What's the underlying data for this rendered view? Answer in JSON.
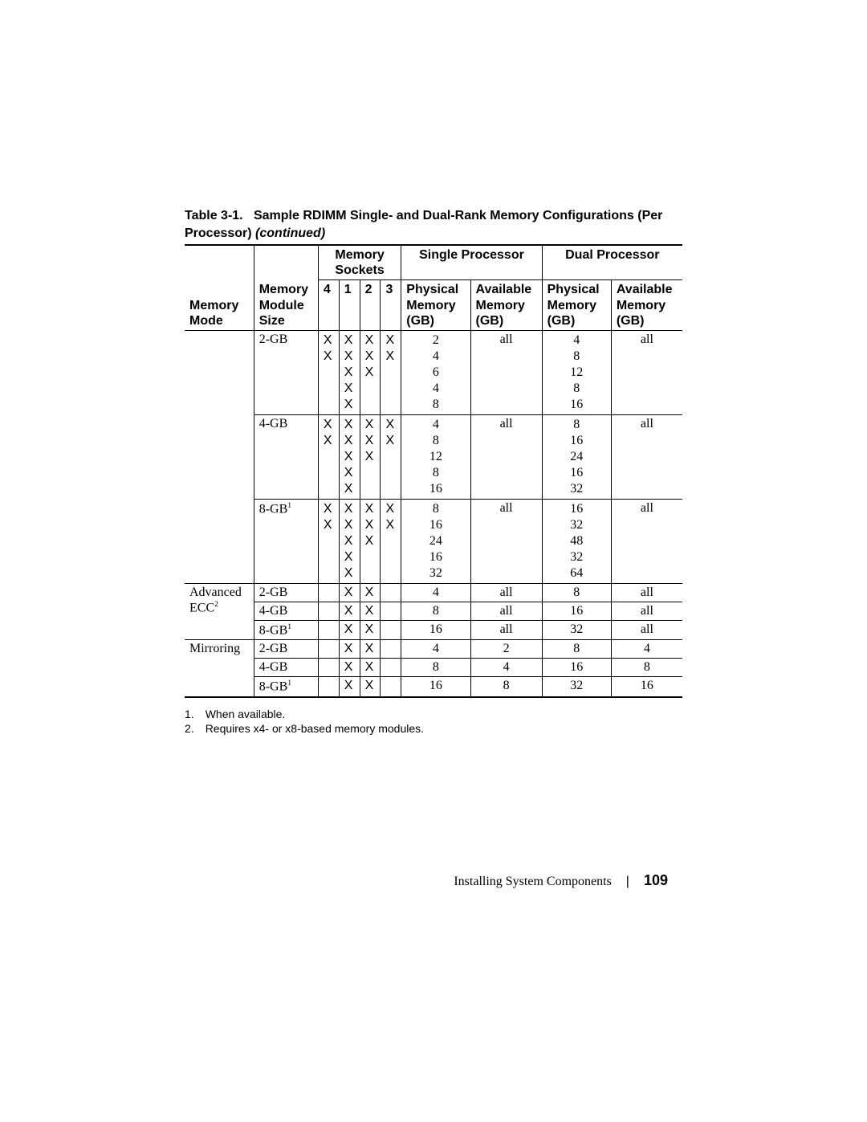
{
  "caption": {
    "label": "Table 3-1.",
    "title": "Sample RDIMM Single- and Dual-Rank Memory Configurations (Per Processor)",
    "continued": "(continued)"
  },
  "headers": {
    "memory_mode": "Memory Mode",
    "memory_module_size": "Memory Module Size",
    "memory_sockets": "Memory Sockets",
    "single_processor": "Single Processor",
    "dual_processor": "Dual Processor",
    "sock4": "4",
    "sock1": "1",
    "sock2": "2",
    "sock3": "3",
    "physical_memory": "Physical Memory (GB)",
    "available_memory": "Available Memory (GB)"
  },
  "modes": {
    "blank": "",
    "advanced_ecc": "Advanced ECC",
    "advanced_ecc_sup": "2",
    "mirroring": "Mirroring"
  },
  "sizes": {
    "gb2": "2-GB",
    "gb4": "4-GB",
    "gb8": "8-GB",
    "gb8_sup": "1"
  },
  "groups": {
    "blank_2gb": {
      "s4": [
        "",
        "",
        "",
        "X",
        "X"
      ],
      "s1": [
        "X",
        "X",
        "X",
        "X",
        "X"
      ],
      "s2": [
        "",
        "X",
        "X",
        "",
        "X"
      ],
      "s3": [
        "",
        "",
        "X",
        "",
        "X"
      ],
      "sp_phys": [
        "2",
        "4",
        "6",
        "4",
        "8"
      ],
      "sp_avail": "all",
      "dp_phys": [
        "4",
        "8",
        "12",
        "8",
        "16"
      ],
      "dp_avail": "all"
    },
    "blank_4gb": {
      "s4": [
        "",
        "",
        "",
        "X",
        "X"
      ],
      "s1": [
        "X",
        "X",
        "X",
        "X",
        "X"
      ],
      "s2": [
        "",
        "X",
        "X",
        "",
        "X"
      ],
      "s3": [
        "",
        "",
        "X",
        "",
        "X"
      ],
      "sp_phys": [
        "4",
        "8",
        "12",
        "8",
        "16"
      ],
      "sp_avail": "all",
      "dp_phys": [
        "8",
        "16",
        "24",
        "16",
        "32"
      ],
      "dp_avail": "all"
    },
    "blank_8gb": {
      "s4": [
        "",
        "",
        "",
        "X",
        "X"
      ],
      "s1": [
        "X",
        "X",
        "X",
        "X",
        "X"
      ],
      "s2": [
        "",
        "X",
        "X",
        "",
        "X"
      ],
      "s3": [
        "",
        "",
        "X",
        "",
        "X"
      ],
      "sp_phys": [
        "8",
        "16",
        "24",
        "16",
        "32"
      ],
      "sp_avail": "all",
      "dp_phys": [
        "16",
        "32",
        "48",
        "32",
        "64"
      ],
      "dp_avail": "all"
    },
    "ecc_2gb": {
      "s4": "",
      "s1": "X",
      "s2": "X",
      "s3": "",
      "sp_phys": "4",
      "sp_avail": "all",
      "dp_phys": "8",
      "dp_avail": "all"
    },
    "ecc_4gb": {
      "s4": "",
      "s1": "X",
      "s2": "X",
      "s3": "",
      "sp_phys": "8",
      "sp_avail": "all",
      "dp_phys": "16",
      "dp_avail": "all"
    },
    "ecc_8gb": {
      "s4": "",
      "s1": "X",
      "s2": "X",
      "s3": "",
      "sp_phys": "16",
      "sp_avail": "all",
      "dp_phys": "32",
      "dp_avail": "all"
    },
    "mir_2gb": {
      "s4": "",
      "s1": "X",
      "s2": "X",
      "s3": "",
      "sp_phys": "4",
      "sp_avail": "2",
      "dp_phys": "8",
      "dp_avail": "4"
    },
    "mir_4gb": {
      "s4": "",
      "s1": "X",
      "s2": "X",
      "s3": "",
      "sp_phys": "8",
      "sp_avail": "4",
      "dp_phys": "16",
      "dp_avail": "8"
    },
    "mir_8gb": {
      "s4": "",
      "s1": "X",
      "s2": "X",
      "s3": "",
      "sp_phys": "16",
      "sp_avail": "8",
      "dp_phys": "32",
      "dp_avail": "16"
    }
  },
  "footnotes": {
    "n1_num": "1.",
    "n1_text": "When available.",
    "n2_num": "2.",
    "n2_text": "Requires x4- or x8-based memory modules."
  },
  "footer": {
    "chapter": "Installing System Components",
    "sep": "|",
    "page": "109"
  }
}
